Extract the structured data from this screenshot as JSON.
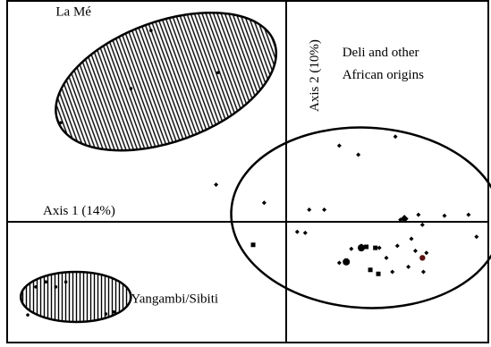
{
  "chart_data": {
    "type": "scatter",
    "title": "",
    "xlabel": "Axis 1 (14%)",
    "ylabel": "Axis 2 (10%)",
    "xlim": [
      -27,
      23
    ],
    "ylim": [
      -12,
      23
    ],
    "grid": false,
    "groups": [
      {
        "name": "La Mé",
        "hatched_ellipse": true,
        "ellipse": {
          "cx": -12,
          "cy": 14,
          "rx": 11.5,
          "ry": 6,
          "rotation_deg": -20
        },
        "points": [
          {
            "x": -13.5,
            "y": 19.1,
            "shape": "dot"
          },
          {
            "x": -15.5,
            "y": 13.3,
            "shape": "dot"
          },
          {
            "x": -22.5,
            "y": 9.9,
            "shape": "dot"
          },
          {
            "x": -6.8,
            "y": 14.9,
            "shape": "dot"
          }
        ]
      },
      {
        "name": "Yangambi/Sibiti",
        "hatched_ellipse": true,
        "ellipse": {
          "cx": -21,
          "cy": -7.5,
          "rx": 5.5,
          "ry": 2.5,
          "rotation_deg": 0
        },
        "points": [
          {
            "x": -25.0,
            "y": -6.5,
            "shape": "dot"
          },
          {
            "x": -24.0,
            "y": -6.0,
            "shape": "dot"
          },
          {
            "x": -23.0,
            "y": -6.5,
            "shape": "dot"
          },
          {
            "x": -22.0,
            "y": -6.0,
            "shape": "dot"
          },
          {
            "x": -25.8,
            "y": -9.3,
            "shape": "dot"
          },
          {
            "x": -18.0,
            "y": -9.2,
            "shape": "dot"
          },
          {
            "x": -17.2,
            "y": -9.0,
            "shape": "dot"
          }
        ]
      },
      {
        "name": "Deli and other African origins",
        "hatched_ellipse": false,
        "ellipse": {
          "cx": 8,
          "cy": 0.4,
          "rx": 13.5,
          "ry": 9,
          "rotation_deg": 3
        },
        "points": [
          {
            "x": 5.3,
            "y": 7.6,
            "shape": "diamond"
          },
          {
            "x": 7.2,
            "y": 6.7,
            "shape": "diamond"
          },
          {
            "x": 10.9,
            "y": 8.5,
            "shape": "diamond"
          },
          {
            "x": -7.0,
            "y": 3.7,
            "shape": "diamond"
          },
          {
            "x": -2.2,
            "y": 1.9,
            "shape": "diamond"
          },
          {
            "x": 2.3,
            "y": 1.2,
            "shape": "diamond"
          },
          {
            "x": 3.8,
            "y": 1.2,
            "shape": "diamond"
          },
          {
            "x": 11.4,
            "y": 0.2,
            "shape": "diamond"
          },
          {
            "x": 13.2,
            "y": 0.7,
            "shape": "diamond"
          },
          {
            "x": 13.6,
            "y": -0.3,
            "shape": "diamond"
          },
          {
            "x": 15.8,
            "y": 0.6,
            "shape": "diamond"
          },
          {
            "x": 18.2,
            "y": 0.7,
            "shape": "diamond"
          },
          {
            "x": 19.0,
            "y": -1.5,
            "shape": "diamond"
          },
          {
            "x": 1.1,
            "y": -1.0,
            "shape": "diamond"
          },
          {
            "x": 1.9,
            "y": -1.1,
            "shape": "diamond"
          },
          {
            "x": 6.5,
            "y": -2.7,
            "shape": "diamond"
          },
          {
            "x": 7.5,
            "y": -2.4,
            "shape": "diamond"
          },
          {
            "x": 9.3,
            "y": -2.6,
            "shape": "diamond"
          },
          {
            "x": 11.1,
            "y": -2.4,
            "shape": "diamond"
          },
          {
            "x": 12.5,
            "y": -1.7,
            "shape": "diamond"
          },
          {
            "x": 14.0,
            "y": -3.1,
            "shape": "diamond"
          },
          {
            "x": 12.9,
            "y": -2.9,
            "shape": "diamond"
          },
          {
            "x": 10.0,
            "y": -3.6,
            "shape": "diamond"
          },
          {
            "x": 10.6,
            "y": -5.0,
            "shape": "diamond"
          },
          {
            "x": 12.2,
            "y": -4.5,
            "shape": "diamond"
          },
          {
            "x": 13.7,
            "y": -5.0,
            "shape": "diamond"
          },
          {
            "x": 5.3,
            "y": -4.1,
            "shape": "diamond"
          },
          {
            "x": 13.6,
            "y": -3.6,
            "shape": "dot-dark-red"
          },
          {
            "x": 7.5,
            "y": -2.6,
            "shape": "large-dot"
          },
          {
            "x": 11.8,
            "y": 0.3,
            "shape": "large-diamond"
          },
          {
            "x": 6.0,
            "y": -4.0,
            "shape": "large-dot"
          },
          {
            "x": -3.3,
            "y": -2.3,
            "shape": "square"
          },
          {
            "x": 8.0,
            "y": -2.5,
            "shape": "square"
          },
          {
            "x": 8.9,
            "y": -2.6,
            "shape": "square"
          },
          {
            "x": 8.4,
            "y": -4.8,
            "shape": "square"
          },
          {
            "x": 9.2,
            "y": -5.2,
            "shape": "square"
          }
        ]
      }
    ],
    "annotations": [
      {
        "text": "La Mé",
        "x": -23,
        "y": 20.6
      },
      {
        "text": "Deli and other",
        "x": 5.6,
        "y": 16.5
      },
      {
        "text": "African origins",
        "x": 5.6,
        "y": 14.3
      },
      {
        "text": "Yangambi/Sibiti",
        "x": -15.5,
        "y": -8.1
      }
    ],
    "axis_label_positions": {
      "x_label": "above-left-of-horizontal-axis",
      "y_label": "right-of-vertical-axis-top"
    }
  }
}
